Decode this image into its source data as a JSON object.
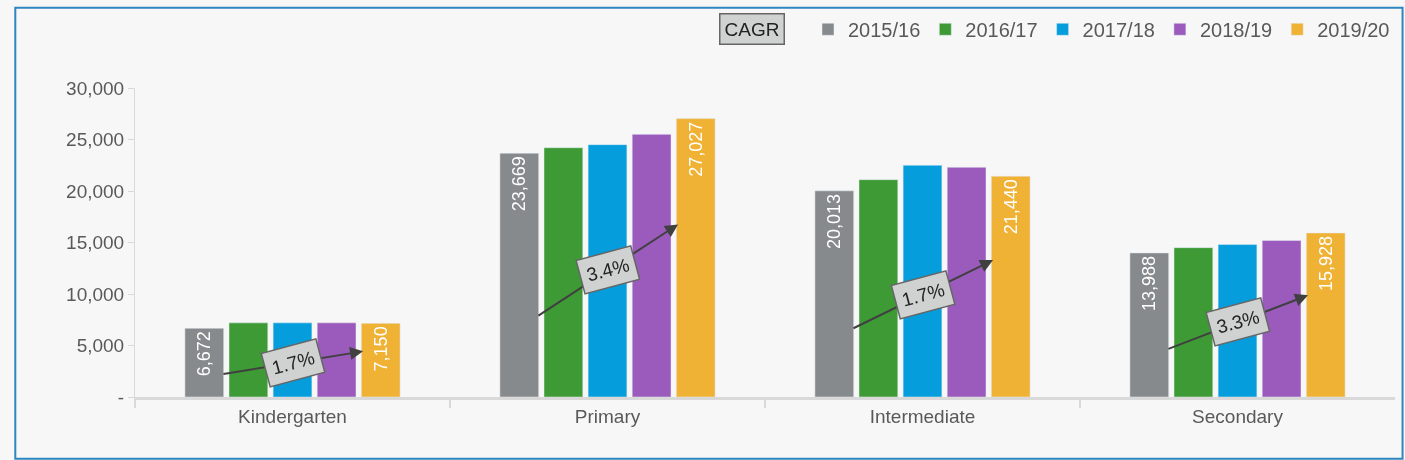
{
  "chart_data": {
    "type": "bar",
    "categories": [
      "Kindergarten",
      "Primary",
      "Intermediate",
      "Secondary"
    ],
    "series": [
      {
        "name": "2015/16",
        "color": "#878a8c",
        "values": [
          6672,
          23669,
          20013,
          13988
        ],
        "value_labels": [
          "6,672",
          "23,669",
          "20,013",
          "13,988"
        ]
      },
      {
        "name": "2016/17",
        "color": "#3e9a35",
        "values": [
          7200,
          24200,
          21100,
          14500
        ]
      },
      {
        "name": "2017/18",
        "color": "#069ddc",
        "values": [
          7200,
          24500,
          22500,
          14800
        ]
      },
      {
        "name": "2018/19",
        "color": "#9b5bbd",
        "values": [
          7200,
          25500,
          22300,
          15200
        ]
      },
      {
        "name": "2019/20",
        "color": "#f0b235",
        "values": [
          7150,
          27027,
          21440,
          15928
        ],
        "value_labels": [
          "7,150",
          "27,027",
          "21,440",
          "15,928"
        ]
      }
    ],
    "annotations": [
      "CAGR",
      "1.7%",
      "3.4%",
      "1.7%",
      "3.3%"
    ],
    "ylim": [
      0,
      30000
    ],
    "yticks": [
      {
        "value": 0,
        "label": "-"
      },
      {
        "value": 5000,
        "label": "5,000"
      },
      {
        "value": 10000,
        "label": "10,000"
      },
      {
        "value": 15000,
        "label": "15,000"
      },
      {
        "value": 20000,
        "label": "20,000"
      },
      {
        "value": 25000,
        "label": "25,000"
      },
      {
        "value": 30000,
        "label": "30,000"
      }
    ],
    "grid": false,
    "legend": "top right"
  }
}
